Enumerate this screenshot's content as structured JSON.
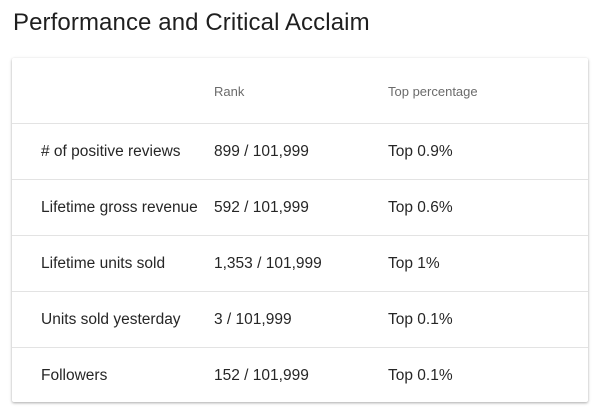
{
  "page_title": "Performance and Critical Acclaim",
  "table": {
    "headers": {
      "metric": "",
      "rank": "Rank",
      "top_percentage": "Top percentage"
    },
    "rows": [
      {
        "metric": "# of positive reviews",
        "rank": "899 / 101,999",
        "top_percentage": "Top 0.9%"
      },
      {
        "metric": "Lifetime gross revenue",
        "rank": "592 / 101,999",
        "top_percentage": "Top 0.6%"
      },
      {
        "metric": "Lifetime units sold",
        "rank": "1,353 / 101,999",
        "top_percentage": "Top 1%"
      },
      {
        "metric": "Units sold yesterday",
        "rank": "3 / 101,999",
        "top_percentage": "Top 0.1%"
      },
      {
        "metric": "Followers",
        "rank": "152 / 101,999",
        "top_percentage": "Top 0.1%"
      }
    ]
  }
}
